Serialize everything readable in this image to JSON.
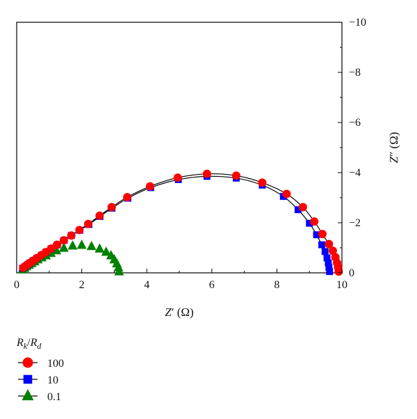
{
  "chart_data": {
    "type": "scatter",
    "title": "",
    "xlabel": {
      "main": "Z",
      "prime": "′",
      "unit": " (Ω)"
    },
    "ylabel": {
      "main": "Z",
      "prime": "″",
      "unit": " (Ω)"
    },
    "xlim": [
      0,
      10
    ],
    "ylim": [
      0,
      -10
    ],
    "x_ticks": [
      0,
      2,
      4,
      6,
      8,
      10
    ],
    "y_ticks": [
      0,
      -2,
      -4,
      -6,
      -8,
      -10
    ],
    "x_tick_labels": [
      "0",
      "2",
      "4",
      "6",
      "8",
      "10"
    ],
    "y_tick_labels": [
      "0",
      "−2",
      "−4",
      "−6",
      "−8",
      "−10"
    ],
    "y_axis_side": "right",
    "grid": false,
    "legend": {
      "placement": "below",
      "title": {
        "r1": "R",
        "s1": "k",
        "slash": "/",
        "r2": "R",
        "s2": "d"
      },
      "entries": [
        "100",
        "10",
        "0.1"
      ]
    },
    "series": [
      {
        "name": "100",
        "marker": "circle",
        "color": "#ff0000",
        "fit_line": true,
        "points": [
          [
            0.2,
            -0.2
          ],
          [
            0.26,
            -0.26
          ],
          [
            0.33,
            -0.33
          ],
          [
            0.41,
            -0.4
          ],
          [
            0.51,
            -0.49
          ],
          [
            0.62,
            -0.59
          ],
          [
            0.76,
            -0.71
          ],
          [
            0.9,
            -0.83
          ],
          [
            1.06,
            -0.97
          ],
          [
            1.24,
            -1.12
          ],
          [
            1.45,
            -1.3
          ],
          [
            1.68,
            -1.49
          ],
          [
            1.93,
            -1.71
          ],
          [
            2.2,
            -1.95
          ],
          [
            2.55,
            -2.28
          ],
          [
            2.92,
            -2.62
          ],
          [
            3.4,
            -3.02
          ],
          [
            4.1,
            -3.45
          ],
          [
            4.95,
            -3.8
          ],
          [
            5.85,
            -3.95
          ],
          [
            6.75,
            -3.88
          ],
          [
            7.55,
            -3.6
          ],
          [
            8.3,
            -3.15
          ],
          [
            8.8,
            -2.62
          ],
          [
            9.15,
            -2.05
          ],
          [
            9.4,
            -1.55
          ],
          [
            9.6,
            -1.15
          ],
          [
            9.72,
            -0.88
          ],
          [
            9.8,
            -0.62
          ],
          [
            9.85,
            -0.4
          ],
          [
            9.88,
            -0.22
          ],
          [
            9.9,
            -0.05
          ]
        ]
      },
      {
        "name": "10",
        "marker": "square",
        "color": "#0000ff",
        "fit_line": true,
        "points": [
          [
            0.18,
            -0.18
          ],
          [
            0.25,
            -0.24
          ],
          [
            0.32,
            -0.31
          ],
          [
            0.4,
            -0.39
          ],
          [
            0.5,
            -0.48
          ],
          [
            0.62,
            -0.58
          ],
          [
            0.76,
            -0.7
          ],
          [
            0.9,
            -0.82
          ],
          [
            1.06,
            -0.96
          ],
          [
            1.25,
            -1.12
          ],
          [
            1.46,
            -1.3
          ],
          [
            1.68,
            -1.49
          ],
          [
            1.94,
            -1.7
          ],
          [
            2.22,
            -1.93
          ],
          [
            2.56,
            -2.25
          ],
          [
            2.93,
            -2.58
          ],
          [
            3.42,
            -2.98
          ],
          [
            4.12,
            -3.4
          ],
          [
            4.97,
            -3.72
          ],
          [
            5.85,
            -3.85
          ],
          [
            6.75,
            -3.78
          ],
          [
            7.55,
            -3.5
          ],
          [
            8.2,
            -3.05
          ],
          [
            8.65,
            -2.52
          ],
          [
            9.0,
            -1.98
          ],
          [
            9.22,
            -1.52
          ],
          [
            9.38,
            -1.12
          ],
          [
            9.48,
            -0.85
          ],
          [
            9.54,
            -0.6
          ],
          [
            9.58,
            -0.4
          ],
          [
            9.6,
            -0.22
          ],
          [
            9.62,
            -0.05
          ]
        ]
      },
      {
        "name": "0.1",
        "marker": "triangle",
        "color": "#008000",
        "fit_line": false,
        "points": [
          [
            0.18,
            -0.12
          ],
          [
            0.24,
            -0.18
          ],
          [
            0.3,
            -0.24
          ],
          [
            0.38,
            -0.3
          ],
          [
            0.46,
            -0.37
          ],
          [
            0.55,
            -0.44
          ],
          [
            0.65,
            -0.52
          ],
          [
            0.77,
            -0.6
          ],
          [
            0.9,
            -0.68
          ],
          [
            1.05,
            -0.78
          ],
          [
            1.22,
            -0.88
          ],
          [
            1.45,
            -0.98
          ],
          [
            1.72,
            -1.07
          ],
          [
            2.0,
            -1.1
          ],
          [
            2.3,
            -1.05
          ],
          [
            2.55,
            -0.95
          ],
          [
            2.75,
            -0.82
          ],
          [
            2.9,
            -0.68
          ],
          [
            3.0,
            -0.52
          ],
          [
            3.08,
            -0.36
          ],
          [
            3.13,
            -0.2
          ],
          [
            3.15,
            -0.04
          ]
        ]
      }
    ]
  }
}
